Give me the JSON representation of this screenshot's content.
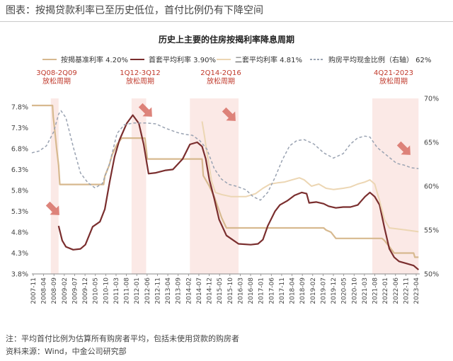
{
  "header": {
    "caption": "图表：按揭贷款利率已至历史低位，首付比例仍有下降空间"
  },
  "footer": {
    "note": "注：平均首付比例为估算所有购房者平均，包括未使用贷款的购房者",
    "source": "资料来源：Wind，中金公司研究部"
  },
  "chart_data": {
    "type": "line",
    "title": "历史上主要的住房按揭利率降息周期",
    "x_ticks": [
      "2007-11",
      "2008-04",
      "2008-09",
      "2009-02",
      "2009-07",
      "2009-12",
      "2010-05",
      "2010-10",
      "2011-03",
      "2011-08",
      "2012-01",
      "2012-06",
      "2012-11",
      "2013-04",
      "2013-09",
      "2014-02",
      "2014-07",
      "2014-12",
      "2015-05",
      "2015-10",
      "2016-03",
      "2016-08",
      "2017-01",
      "2017-06",
      "2017-11",
      "2018-04",
      "2018-09",
      "2019-02",
      "2019-07",
      "2019-12",
      "2020-05",
      "2020-10",
      "2021-03",
      "2021-08",
      "2022-01",
      "2022-06",
      "2022-11",
      "2023-04"
    ],
    "y_left": {
      "min": 3.8,
      "max": 8.0,
      "ticks": [
        "3.8%",
        "4.3%",
        "4.8%",
        "5.3%",
        "5.8%",
        "6.3%",
        "6.8%",
        "7.3%",
        "7.8%"
      ]
    },
    "y_right": {
      "min": 50,
      "max": 70,
      "ticks": [
        "50%",
        "55%",
        "60%",
        "65%",
        "70%"
      ]
    },
    "legend": [
      {
        "label": "按揭基准利率",
        "value": "4.20%",
        "color": "#d7b98f",
        "style": "solid"
      },
      {
        "label": "首套平均利率",
        "value": "3.90%",
        "color": "#7a2e2e",
        "style": "solid"
      },
      {
        "label": "二套平均利率",
        "value": "4.81%",
        "color": "#ecd6b3",
        "style": "solid"
      },
      {
        "label": "购房平均现金比例（右轴）",
        "value": "62%",
        "color": "#9aa3b2",
        "style": "dashed"
      }
    ],
    "easing_periods": [
      {
        "label": "3Q08-2Q09",
        "sub": "放松周期",
        "start": 2008.58,
        "end": 2008.9
      },
      {
        "label": "1Q12-3Q12",
        "sub": "放松周期",
        "start": 2011.9,
        "end": 2012.5
      },
      {
        "label": "2Q14-2Q16",
        "sub": "放松周期",
        "start": 2014.3,
        "end": 2016.3
      },
      {
        "label": "4Q21-2023",
        "sub": "放松周期",
        "start": 2021.8,
        "end": 2023.7
      }
    ],
    "x_range": [
      2007.8,
      2023.75
    ],
    "series": [
      {
        "name": "按揭基准利率",
        "axis": "left",
        "color": "#d7b98f",
        "width": 2.2,
        "dash": "",
        "points": [
          [
            2007.8,
            7.83
          ],
          [
            2008.65,
            7.83
          ],
          [
            2008.68,
            7.56
          ],
          [
            2008.75,
            7.2
          ],
          [
            2008.82,
            6.8
          ],
          [
            2008.9,
            6.4
          ],
          [
            2008.95,
            5.94
          ],
          [
            2010.75,
            5.94
          ],
          [
            2010.8,
            6.14
          ],
          [
            2010.98,
            6.4
          ],
          [
            2011.1,
            6.65
          ],
          [
            2011.3,
            6.9
          ],
          [
            2011.5,
            7.05
          ],
          [
            2012.45,
            7.05
          ],
          [
            2012.5,
            6.8
          ],
          [
            2012.55,
            6.55
          ],
          [
            2014.8,
            6.55
          ],
          [
            2014.85,
            6.15
          ],
          [
            2015.1,
            5.9
          ],
          [
            2015.3,
            5.65
          ],
          [
            2015.45,
            5.4
          ],
          [
            2015.6,
            5.15
          ],
          [
            2015.8,
            4.9
          ],
          [
            2019.8,
            4.9
          ],
          [
            2019.9,
            4.85
          ],
          [
            2020.1,
            4.8
          ],
          [
            2020.3,
            4.65
          ],
          [
            2022.2,
            4.65
          ],
          [
            2022.3,
            4.6
          ],
          [
            2022.5,
            4.45
          ],
          [
            2022.7,
            4.3
          ],
          [
            2023.5,
            4.3
          ],
          [
            2023.55,
            4.2
          ],
          [
            2023.7,
            4.2
          ]
        ]
      },
      {
        "name": "首套平均利率",
        "axis": "left",
        "color": "#7a2e2e",
        "width": 2.2,
        "dash": "",
        "points": [
          [
            2008.9,
            4.95
          ],
          [
            2009.05,
            4.6
          ],
          [
            2009.2,
            4.45
          ],
          [
            2009.5,
            4.38
          ],
          [
            2009.8,
            4.4
          ],
          [
            2010.0,
            4.5
          ],
          [
            2010.3,
            4.93
          ],
          [
            2010.6,
            5.05
          ],
          [
            2010.8,
            5.35
          ],
          [
            2011.0,
            6.0
          ],
          [
            2011.2,
            6.6
          ],
          [
            2011.4,
            7.0
          ],
          [
            2011.7,
            7.4
          ],
          [
            2011.95,
            7.6
          ],
          [
            2012.2,
            7.4
          ],
          [
            2012.4,
            6.9
          ],
          [
            2012.6,
            6.2
          ],
          [
            2012.9,
            6.22
          ],
          [
            2013.3,
            6.28
          ],
          [
            2013.6,
            6.3
          ],
          [
            2014.0,
            6.55
          ],
          [
            2014.3,
            6.9
          ],
          [
            2014.6,
            6.95
          ],
          [
            2014.8,
            6.85
          ],
          [
            2014.95,
            6.55
          ],
          [
            2015.1,
            6.05
          ],
          [
            2015.3,
            5.6
          ],
          [
            2015.5,
            5.1
          ],
          [
            2015.8,
            4.72
          ],
          [
            2016.1,
            4.6
          ],
          [
            2016.3,
            4.52
          ],
          [
            2016.8,
            4.5
          ],
          [
            2017.1,
            4.52
          ],
          [
            2017.3,
            4.62
          ],
          [
            2017.5,
            4.95
          ],
          [
            2017.8,
            5.3
          ],
          [
            2018.0,
            5.45
          ],
          [
            2018.3,
            5.55
          ],
          [
            2018.6,
            5.68
          ],
          [
            2018.9,
            5.75
          ],
          [
            2019.1,
            5.72
          ],
          [
            2019.2,
            5.5
          ],
          [
            2019.5,
            5.52
          ],
          [
            2019.8,
            5.48
          ],
          [
            2020.0,
            5.42
          ],
          [
            2020.3,
            5.38
          ],
          [
            2020.6,
            5.4
          ],
          [
            2020.9,
            5.4
          ],
          [
            2021.2,
            5.45
          ],
          [
            2021.5,
            5.65
          ],
          [
            2021.7,
            5.75
          ],
          [
            2021.9,
            5.65
          ],
          [
            2022.1,
            5.45
          ],
          [
            2022.3,
            4.9
          ],
          [
            2022.5,
            4.4
          ],
          [
            2022.7,
            4.2
          ],
          [
            2022.9,
            4.1
          ],
          [
            2023.2,
            4.05
          ],
          [
            2023.5,
            4.0
          ],
          [
            2023.7,
            3.9
          ]
        ]
      },
      {
        "name": "二套平均利率",
        "axis": "left",
        "color": "#ecd6b3",
        "width": 2.0,
        "dash": "",
        "points": [
          [
            2014.8,
            7.45
          ],
          [
            2014.9,
            7.1
          ],
          [
            2015.0,
            6.7
          ],
          [
            2015.1,
            6.35
          ],
          [
            2015.2,
            6.0
          ],
          [
            2015.35,
            5.75
          ],
          [
            2015.6,
            5.7
          ],
          [
            2016.0,
            5.65
          ],
          [
            2016.6,
            5.65
          ],
          [
            2017.0,
            5.72
          ],
          [
            2017.3,
            5.85
          ],
          [
            2017.6,
            5.95
          ],
          [
            2017.9,
            5.98
          ],
          [
            2018.2,
            6.0
          ],
          [
            2018.5,
            6.05
          ],
          [
            2018.8,
            6.1
          ],
          [
            2019.0,
            6.05
          ],
          [
            2019.3,
            5.9
          ],
          [
            2019.6,
            5.95
          ],
          [
            2019.9,
            5.85
          ],
          [
            2020.2,
            5.82
          ],
          [
            2020.6,
            5.85
          ],
          [
            2020.9,
            5.88
          ],
          [
            2021.2,
            5.95
          ],
          [
            2021.5,
            6.0
          ],
          [
            2021.7,
            6.05
          ],
          [
            2021.9,
            5.95
          ],
          [
            2022.1,
            5.55
          ],
          [
            2022.3,
            5.1
          ],
          [
            2022.5,
            4.9
          ],
          [
            2022.8,
            4.88
          ],
          [
            2023.2,
            4.85
          ],
          [
            2023.7,
            4.81
          ]
        ]
      },
      {
        "name": "购房平均现金比例（右轴）",
        "axis": "right",
        "color": "#9aa3b2",
        "width": 1.5,
        "dash": "4,3",
        "points": [
          [
            2007.8,
            63.8
          ],
          [
            2008.1,
            64.0
          ],
          [
            2008.4,
            64.6
          ],
          [
            2008.7,
            66.2
          ],
          [
            2008.9,
            68.2
          ],
          [
            2009.0,
            68.6
          ],
          [
            2009.2,
            67.8
          ],
          [
            2009.5,
            64.5
          ],
          [
            2009.8,
            61.5
          ],
          [
            2010.1,
            60.4
          ],
          [
            2010.4,
            59.8
          ],
          [
            2010.7,
            60.3
          ],
          [
            2011.0,
            62.6
          ],
          [
            2011.3,
            66.0
          ],
          [
            2011.6,
            67.0
          ],
          [
            2012.0,
            67.2
          ],
          [
            2012.5,
            67.2
          ],
          [
            2012.9,
            67.1
          ],
          [
            2013.3,
            66.6
          ],
          [
            2013.8,
            66.1
          ],
          [
            2014.1,
            65.9
          ],
          [
            2014.4,
            65.8
          ],
          [
            2014.7,
            65.2
          ],
          [
            2015.0,
            64.2
          ],
          [
            2015.3,
            62.0
          ],
          [
            2015.6,
            60.8
          ],
          [
            2015.9,
            60.2
          ],
          [
            2016.2,
            60.0
          ],
          [
            2016.6,
            59.6
          ],
          [
            2016.9,
            58.8
          ],
          [
            2017.2,
            58.4
          ],
          [
            2017.5,
            59.3
          ],
          [
            2017.8,
            61.0
          ],
          [
            2018.1,
            63.0
          ],
          [
            2018.4,
            64.6
          ],
          [
            2018.7,
            65.2
          ],
          [
            2019.0,
            65.3
          ],
          [
            2019.4,
            64.8
          ],
          [
            2019.8,
            63.8
          ],
          [
            2020.2,
            63.2
          ],
          [
            2020.6,
            63.7
          ],
          [
            2020.9,
            64.8
          ],
          [
            2021.2,
            65.5
          ],
          [
            2021.5,
            65.7
          ],
          [
            2021.7,
            65.6
          ],
          [
            2022.0,
            64.4
          ],
          [
            2022.4,
            63.5
          ],
          [
            2022.8,
            62.6
          ],
          [
            2023.1,
            62.4
          ],
          [
            2023.4,
            62.1
          ],
          [
            2023.7,
            62.0
          ]
        ]
      }
    ]
  }
}
